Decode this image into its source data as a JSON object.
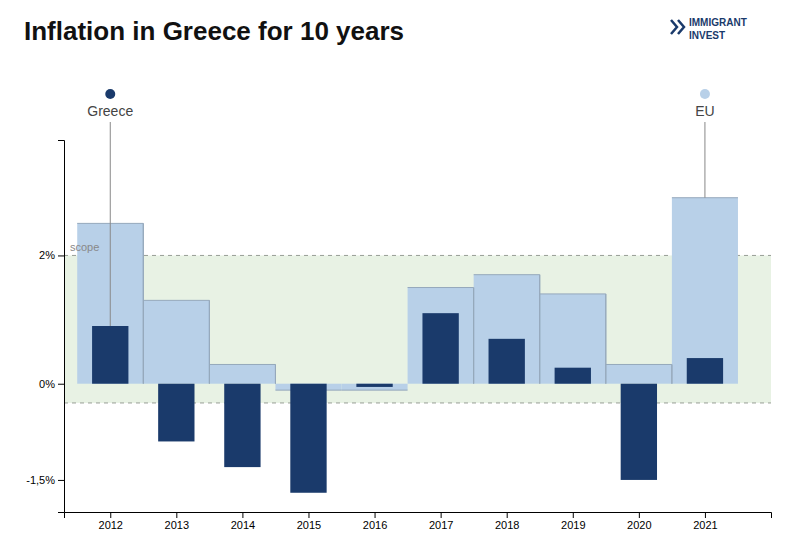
{
  "chart_data": {
    "type": "bar",
    "title": "Inflation in Greece for 10 years",
    "x": [
      2012,
      2013,
      2014,
      2015,
      2016,
      2017,
      2018,
      2019,
      2020,
      2021
    ],
    "series": [
      {
        "name": "Greece",
        "type": "bar",
        "color": "#1a3a6b",
        "values": [
          0.9,
          -0.9,
          -1.3,
          -1.7,
          -0.05,
          1.1,
          0.7,
          0.25,
          -1.5,
          0.4
        ]
      },
      {
        "name": "EU",
        "type": "step",
        "color": "#b8d0e8",
        "values": [
          2.5,
          1.3,
          0.3,
          -0.1,
          -0.1,
          1.5,
          1.7,
          1.4,
          0.3,
          2.9
        ]
      }
    ],
    "xlim": [
      2011.3,
      2022.0
    ],
    "xticks": [
      2012,
      2013,
      2014,
      2015,
      2016,
      2017,
      2018,
      2019,
      2020,
      2021
    ],
    "ylim": [
      -2.0,
      3.8
    ],
    "yticks": [
      {
        "value": -1.5,
        "label": "-1,5%"
      },
      {
        "value": 0.0,
        "label": "0%"
      },
      {
        "value": 2.0,
        "label": "2%"
      }
    ],
    "grid": false,
    "annotations": [
      {
        "text": "scope",
        "y1": -0.3,
        "y2": 2.0,
        "color": "#e8f2e4"
      },
      {
        "text": "IMMIGRANT INVEST",
        "color": "#1a3a6b"
      }
    ]
  }
}
